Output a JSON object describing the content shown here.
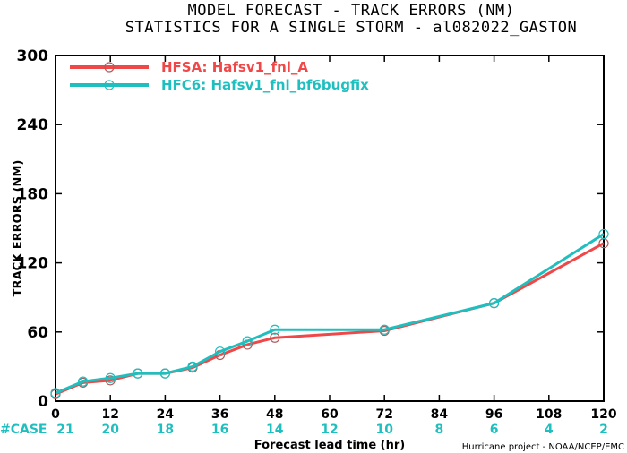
{
  "chart_data": {
    "type": "line",
    "title_lines": [
      "MODEL FORECAST - TRACK ERRORS (NM)",
      "STATISTICS FOR A SINGLE STORM - al082022_GASTON"
    ],
    "xlabel": "Forecast lead time (hr)",
    "ylabel": "TRACK ERRORS (NM)",
    "xlim": [
      0,
      120
    ],
    "ylim": [
      0,
      300
    ],
    "x_ticks": [
      0,
      12,
      24,
      36,
      48,
      60,
      72,
      84,
      96,
      108,
      120
    ],
    "y_ticks": [
      0,
      60,
      120,
      180,
      240,
      300
    ],
    "y_tick_labels": [
      "0",
      "60",
      "120",
      "180",
      "240",
      "300"
    ],
    "legend_position": "top-left",
    "series": [
      {
        "name": "HFSA: Hafsv1_fnl_A",
        "color": "#f04848",
        "x": [
          0,
          6,
          12,
          18,
          24,
          30,
          36,
          42,
          48,
          72,
          96,
          120
        ],
        "y": [
          6,
          16,
          18,
          24,
          24,
          29,
          40,
          49,
          55,
          61,
          85,
          137
        ]
      },
      {
        "name": "HFC6: Hafsv1_fnl_bf6bugfix",
        "color": "#1fbfbf",
        "x": [
          0,
          6,
          12,
          18,
          24,
          30,
          36,
          42,
          48,
          72,
          96,
          120
        ],
        "y": [
          7,
          17,
          20,
          24,
          24,
          30,
          43,
          52,
          62,
          62,
          85,
          145
        ]
      }
    ],
    "case_label": "#CASE",
    "case_x": [
      0,
      12,
      24,
      36,
      48,
      60,
      72,
      84,
      96,
      108,
      120
    ],
    "case_counts": [
      "21",
      "20",
      "18",
      "16",
      "14",
      "12",
      "10",
      "8",
      "6",
      "4",
      "2"
    ],
    "footer": "Hurricane project - NOAA/NCEP/EMC"
  }
}
